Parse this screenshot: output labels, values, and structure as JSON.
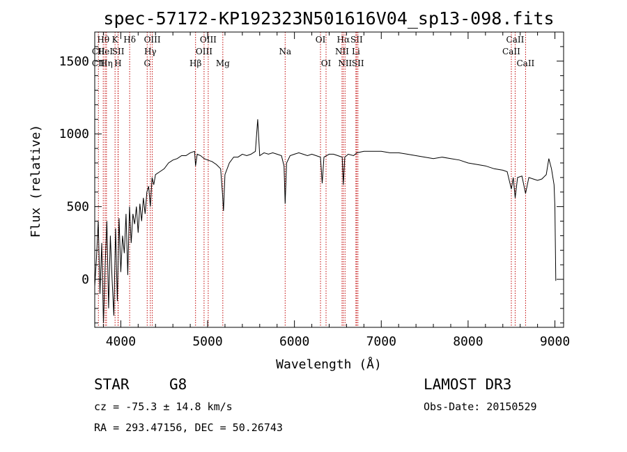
{
  "chart_data": {
    "type": "line",
    "title": "spec-57172-KP192323N501616V04_sp13-098.fits",
    "xlabel": "Wavelength (Å)",
    "ylabel": "Flux (relative)",
    "xlim": [
      3700,
      9100
    ],
    "ylim": [
      -330,
      1700
    ],
    "xticks": [
      4000,
      5000,
      6000,
      7000,
      8000,
      9000
    ],
    "yticks": [
      0,
      500,
      1000,
      1500
    ],
    "x_minor_step": 200,
    "y_minor_step": 100,
    "series": [
      {
        "name": "flux",
        "points": [
          [
            3700,
            -50
          ],
          [
            3720,
            150
          ],
          [
            3740,
            400
          ],
          [
            3760,
            -100
          ],
          [
            3780,
            250
          ],
          [
            3800,
            -300
          ],
          [
            3820,
            100
          ],
          [
            3840,
            400
          ],
          [
            3860,
            -200
          ],
          [
            3880,
            300
          ],
          [
            3900,
            0
          ],
          [
            3920,
            -250
          ],
          [
            3940,
            350
          ],
          [
            3960,
            -150
          ],
          [
            3980,
            420
          ],
          [
            4000,
            50
          ],
          [
            4020,
            300
          ],
          [
            4040,
            180
          ],
          [
            4060,
            450
          ],
          [
            4080,
            30
          ],
          [
            4100,
            500
          ],
          [
            4120,
            250
          ],
          [
            4140,
            450
          ],
          [
            4160,
            380
          ],
          [
            4180,
            500
          ],
          [
            4200,
            320
          ],
          [
            4220,
            520
          ],
          [
            4240,
            400
          ],
          [
            4260,
            560
          ],
          [
            4280,
            450
          ],
          [
            4300,
            600
          ],
          [
            4320,
            640
          ],
          [
            4340,
            500
          ],
          [
            4360,
            700
          ],
          [
            4380,
            650
          ],
          [
            4400,
            720
          ],
          [
            4450,
            740
          ],
          [
            4500,
            760
          ],
          [
            4550,
            800
          ],
          [
            4600,
            820
          ],
          [
            4650,
            830
          ],
          [
            4700,
            850
          ],
          [
            4750,
            850
          ],
          [
            4800,
            870
          ],
          [
            4850,
            880
          ],
          [
            4861,
            780
          ],
          [
            4880,
            860
          ],
          [
            4920,
            850
          ],
          [
            4960,
            830
          ],
          [
            5000,
            820
          ],
          [
            5050,
            810
          ],
          [
            5100,
            790
          ],
          [
            5150,
            760
          ],
          [
            5170,
            600
          ],
          [
            5183,
            470
          ],
          [
            5200,
            720
          ],
          [
            5250,
            800
          ],
          [
            5300,
            840
          ],
          [
            5350,
            840
          ],
          [
            5400,
            860
          ],
          [
            5450,
            850
          ],
          [
            5500,
            860
          ],
          [
            5550,
            880
          ],
          [
            5577,
            1100
          ],
          [
            5600,
            850
          ],
          [
            5650,
            870
          ],
          [
            5700,
            860
          ],
          [
            5750,
            870
          ],
          [
            5800,
            860
          ],
          [
            5850,
            850
          ],
          [
            5880,
            780
          ],
          [
            5893,
            520
          ],
          [
            5910,
            800
          ],
          [
            5950,
            850
          ],
          [
            6000,
            860
          ],
          [
            6050,
            870
          ],
          [
            6100,
            860
          ],
          [
            6150,
            850
          ],
          [
            6200,
            860
          ],
          [
            6250,
            850
          ],
          [
            6300,
            840
          ],
          [
            6320,
            660
          ],
          [
            6340,
            840
          ],
          [
            6400,
            860
          ],
          [
            6450,
            860
          ],
          [
            6500,
            850
          ],
          [
            6550,
            840
          ],
          [
            6563,
            650
          ],
          [
            6580,
            840
          ],
          [
            6620,
            860
          ],
          [
            6680,
            850
          ],
          [
            6720,
            870
          ],
          [
            6800,
            880
          ],
          [
            6900,
            880
          ],
          [
            7000,
            880
          ],
          [
            7100,
            870
          ],
          [
            7200,
            870
          ],
          [
            7300,
            860
          ],
          [
            7400,
            850
          ],
          [
            7500,
            840
          ],
          [
            7600,
            830
          ],
          [
            7700,
            840
          ],
          [
            7800,
            830
          ],
          [
            7900,
            820
          ],
          [
            8000,
            800
          ],
          [
            8100,
            790
          ],
          [
            8200,
            780
          ],
          [
            8300,
            760
          ],
          [
            8400,
            750
          ],
          [
            8450,
            740
          ],
          [
            8498,
            620
          ],
          [
            8520,
            700
          ],
          [
            8542,
            560
          ],
          [
            8570,
            700
          ],
          [
            8620,
            710
          ],
          [
            8662,
            590
          ],
          [
            8700,
            700
          ],
          [
            8750,
            690
          ],
          [
            8800,
            680
          ],
          [
            8850,
            690
          ],
          [
            8900,
            720
          ],
          [
            8930,
            830
          ],
          [
            8960,
            760
          ],
          [
            8990,
            650
          ],
          [
            9000,
            500
          ],
          [
            9010,
            -10
          ]
        ]
      }
    ],
    "line_markers": [
      {
        "label": "Hθ",
        "wavelength": 3798,
        "row": 1
      },
      {
        "label": "CII",
        "wavelength": 3742,
        "row": 2
      },
      {
        "label": "CII",
        "wavelength": 3742,
        "row": 3
      },
      {
        "label": "HeI",
        "wavelength": 3820,
        "row": 2
      },
      {
        "label": "Hη",
        "wavelength": 3835,
        "row": 3
      },
      {
        "label": "K",
        "wavelength": 3934,
        "row": 1
      },
      {
        "label": "SII",
        "wavelength": 3970,
        "row": 2
      },
      {
        "label": "H",
        "wavelength": 3968,
        "row": 3
      },
      {
        "label": "Hδ",
        "wavelength": 4102,
        "row": 1
      },
      {
        "label": "OIII",
        "wavelength": 4363,
        "row": 1
      },
      {
        "label": "Hγ",
        "wavelength": 4340,
        "row": 2
      },
      {
        "label": "G",
        "wavelength": 4304,
        "row": 3
      },
      {
        "label": "OIII",
        "wavelength": 5007,
        "row": 1
      },
      {
        "label": "OIII",
        "wavelength": 4959,
        "row": 2
      },
      {
        "label": "Hβ",
        "wavelength": 4861,
        "row": 3
      },
      {
        "label": "Mg",
        "wavelength": 5175,
        "row": 3
      },
      {
        "label": "Na",
        "wavelength": 5893,
        "row": 2
      },
      {
        "label": "OI",
        "wavelength": 6300,
        "row": 1
      },
      {
        "label": "OI",
        "wavelength": 6364,
        "row": 3
      },
      {
        "label": "Hα",
        "wavelength": 6563,
        "row": 1
      },
      {
        "label": "SII",
        "wavelength": 6716,
        "row": 1
      },
      {
        "label": "NII",
        "wavelength": 6548,
        "row": 2
      },
      {
        "label": "Li",
        "wavelength": 6708,
        "row": 2
      },
      {
        "label": "NII",
        "wavelength": 6583,
        "row": 3
      },
      {
        "label": "SII",
        "wavelength": 6731,
        "row": 3
      },
      {
        "label": "CaII",
        "wavelength": 8542,
        "row": 1
      },
      {
        "label": "CaII",
        "wavelength": 8498,
        "row": 2
      },
      {
        "label": "CaII",
        "wavelength": 8662,
        "row": 3
      }
    ]
  },
  "info": {
    "class": "STAR",
    "subclass": "G8",
    "survey": "LAMOST DR3",
    "velocity": "cz = -75.3 ± 14.8 km/s",
    "obs_date": "Obs-Date: 20150529",
    "coords": "RA = 293.47156, DEC =  50.26743"
  }
}
